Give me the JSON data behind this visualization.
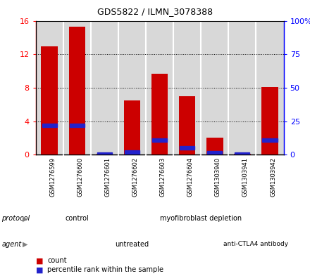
{
  "title": "GDS5822 / ILMN_3078388",
  "samples": [
    "GSM1276599",
    "GSM1276600",
    "GSM1276601",
    "GSM1276602",
    "GSM1276603",
    "GSM1276604",
    "GSM1303940",
    "GSM1303941",
    "GSM1303942"
  ],
  "counts": [
    13.0,
    15.3,
    0.1,
    6.5,
    9.7,
    7.0,
    2.0,
    0.1,
    8.1
  ],
  "percentiles": [
    22.0,
    22.0,
    0.5,
    2.0,
    11.0,
    5.0,
    1.5,
    0.5,
    11.0
  ],
  "ylim_left": [
    0,
    16
  ],
  "ylim_right": [
    0,
    100
  ],
  "yticks_left": [
    0,
    4,
    8,
    12,
    16
  ],
  "yticks_right": [
    0,
    25,
    50,
    75,
    100
  ],
  "yticklabels_right": [
    "0",
    "25",
    "50",
    "75",
    "100%"
  ],
  "bar_color": "#cc0000",
  "percentile_color": "#2222cc",
  "bg_color": "#d8d8d8",
  "plot_bg": "#ffffff",
  "ctrl_color": "#99ee99",
  "myofib_color": "#44cc44",
  "untreated_color": "#ffaaff",
  "antictla4_color": "#ee44ee",
  "ctrl_n": 3,
  "myofib_n": 6,
  "untreated_n": 7,
  "antictla4_n": 2,
  "n_samples": 9
}
